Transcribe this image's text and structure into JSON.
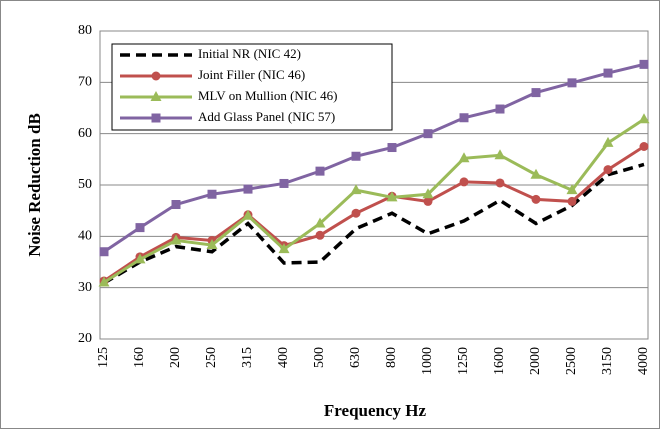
{
  "chart_data": {
    "type": "line",
    "y_label": "Noise Reduction  dB",
    "x_label": "Frequency  Hz",
    "categories": [
      "125",
      "160",
      "200",
      "250",
      "315",
      "400",
      "500",
      "630",
      "800",
      "1000",
      "1250",
      "1600",
      "2000",
      "2500",
      "3150",
      "4000"
    ],
    "series": [
      {
        "name": "Initial NR (NIC 42)",
        "color": "#000000",
        "dash": true,
        "marker": "none",
        "values": [
          30.9,
          35,
          38,
          37,
          42.5,
          34.8,
          35,
          41.5,
          44.5,
          40.5,
          43,
          47,
          42.5,
          46,
          52,
          54
        ]
      },
      {
        "name": "Joint Filler (NIC 46)",
        "color": "#c0504d",
        "dash": false,
        "marker": "circle",
        "values": [
          31.3,
          36,
          39.8,
          39.2,
          44.2,
          38.2,
          40.2,
          44.5,
          47.8,
          46.8,
          50.6,
          50.4,
          47.2,
          46.8,
          53,
          57.5
        ]
      },
      {
        "name": "MLV on Mullion (NIC 46)",
        "color": "#9bbb59",
        "dash": false,
        "marker": "triangle",
        "values": [
          31,
          35.5,
          39.2,
          38.3,
          44,
          37.5,
          42.5,
          49,
          47.6,
          48.2,
          55.2,
          55.8,
          52,
          49,
          58.2,
          62.8
        ]
      },
      {
        "name": "Add Glass Panel  (NIC 57)",
        "color": "#8064a2",
        "dash": false,
        "marker": "square",
        "values": [
          37,
          41.7,
          46.2,
          48.2,
          49.2,
          50.3,
          52.7,
          55.6,
          57.3,
          60,
          63.1,
          64.8,
          68,
          69.9,
          71.8,
          73.5
        ]
      }
    ],
    "ylim": [
      20,
      80
    ],
    "yticks": [
      20,
      30,
      40,
      50,
      60,
      70,
      80
    ],
    "grid": true,
    "legend": "top-left"
  }
}
